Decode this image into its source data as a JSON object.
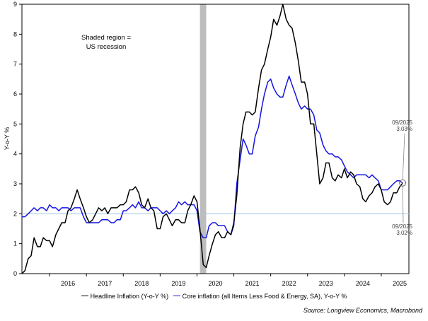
{
  "chart_data": {
    "type": "line",
    "xlim": [
      2015.25,
      2025.75
    ],
    "ylim": [
      0,
      9
    ],
    "ylabel": "Y-o-Y %",
    "y_ticks": [
      0,
      1,
      2,
      3,
      4,
      5,
      6,
      7,
      8,
      9
    ],
    "x_tick_labels": [
      "2016",
      "2017",
      "2018",
      "2019",
      "2020",
      "2021",
      "2022",
      "2023",
      "2024",
      "2025"
    ],
    "reference_line": 2,
    "recession": {
      "start": 2020.08,
      "end": 2020.25,
      "note_line1": "Shaded region =",
      "note_line2": "US recession"
    },
    "series": [
      {
        "name": "Headline Inflation (Y-o-Y %)",
        "color": "#000000",
        "points": [
          [
            2015.25,
            0.0
          ],
          [
            2015.33,
            0.1
          ],
          [
            2015.42,
            0.5
          ],
          [
            2015.5,
            0.6
          ],
          [
            2015.58,
            1.2
          ],
          [
            2015.67,
            0.9
          ],
          [
            2015.75,
            0.9
          ],
          [
            2015.83,
            1.2
          ],
          [
            2015.92,
            1.1
          ],
          [
            2016.0,
            1.1
          ],
          [
            2016.08,
            0.9
          ],
          [
            2016.17,
            1.3
          ],
          [
            2016.25,
            1.5
          ],
          [
            2016.33,
            1.7
          ],
          [
            2016.42,
            1.7
          ],
          [
            2016.5,
            2.1
          ],
          [
            2016.58,
            2.2
          ],
          [
            2016.67,
            2.5
          ],
          [
            2016.75,
            2.8
          ],
          [
            2016.83,
            2.5
          ],
          [
            2016.92,
            2.2
          ],
          [
            2017.0,
            1.9
          ],
          [
            2017.08,
            1.7
          ],
          [
            2017.17,
            1.8
          ],
          [
            2017.25,
            2.0
          ],
          [
            2017.33,
            2.2
          ],
          [
            2017.42,
            2.1
          ],
          [
            2017.5,
            2.2
          ],
          [
            2017.58,
            2.0
          ],
          [
            2017.67,
            2.2
          ],
          [
            2017.75,
            2.2
          ],
          [
            2017.83,
            2.2
          ],
          [
            2017.92,
            2.3
          ],
          [
            2018.0,
            2.3
          ],
          [
            2018.08,
            2.4
          ],
          [
            2018.17,
            2.8
          ],
          [
            2018.25,
            2.8
          ],
          [
            2018.33,
            2.9
          ],
          [
            2018.42,
            2.7
          ],
          [
            2018.5,
            2.3
          ],
          [
            2018.58,
            2.2
          ],
          [
            2018.67,
            2.5
          ],
          [
            2018.75,
            2.2
          ],
          [
            2018.83,
            2.1
          ],
          [
            2018.92,
            1.5
          ],
          [
            2019.0,
            1.5
          ],
          [
            2019.08,
            1.9
          ],
          [
            2019.17,
            2.0
          ],
          [
            2019.25,
            1.8
          ],
          [
            2019.33,
            1.6
          ],
          [
            2019.42,
            1.8
          ],
          [
            2019.5,
            1.8
          ],
          [
            2019.58,
            1.7
          ],
          [
            2019.67,
            1.7
          ],
          [
            2019.75,
            2.1
          ],
          [
            2019.83,
            2.3
          ],
          [
            2019.92,
            2.6
          ],
          [
            2020.0,
            2.4
          ],
          [
            2020.08,
            1.5
          ],
          [
            2020.17,
            0.3
          ],
          [
            2020.25,
            0.2
          ],
          [
            2020.33,
            0.6
          ],
          [
            2020.42,
            1.0
          ],
          [
            2020.5,
            1.3
          ],
          [
            2020.58,
            1.4
          ],
          [
            2020.67,
            1.2
          ],
          [
            2020.75,
            1.2
          ],
          [
            2020.83,
            1.4
          ],
          [
            2020.92,
            1.3
          ],
          [
            2021.0,
            1.7
          ],
          [
            2021.08,
            2.6
          ],
          [
            2021.17,
            4.2
          ],
          [
            2021.25,
            5.0
          ],
          [
            2021.33,
            5.4
          ],
          [
            2021.42,
            5.4
          ],
          [
            2021.5,
            5.3
          ],
          [
            2021.58,
            5.4
          ],
          [
            2021.67,
            6.2
          ],
          [
            2021.75,
            6.8
          ],
          [
            2021.83,
            7.0
          ],
          [
            2021.92,
            7.5
          ],
          [
            2022.0,
            7.9
          ],
          [
            2022.08,
            8.5
          ],
          [
            2022.17,
            8.3
          ],
          [
            2022.25,
            8.6
          ],
          [
            2022.33,
            9.0
          ],
          [
            2022.42,
            8.5
          ],
          [
            2022.5,
            8.3
          ],
          [
            2022.58,
            8.2
          ],
          [
            2022.67,
            7.7
          ],
          [
            2022.75,
            7.1
          ],
          [
            2022.83,
            6.4
          ],
          [
            2022.92,
            6.4
          ],
          [
            2023.0,
            6.0
          ],
          [
            2023.08,
            5.0
          ],
          [
            2023.17,
            5.0
          ],
          [
            2023.25,
            4.0
          ],
          [
            2023.33,
            3.0
          ],
          [
            2023.42,
            3.2
          ],
          [
            2023.5,
            3.7
          ],
          [
            2023.58,
            3.7
          ],
          [
            2023.67,
            3.2
          ],
          [
            2023.75,
            3.1
          ],
          [
            2023.83,
            3.3
          ],
          [
            2023.92,
            3.2
          ],
          [
            2024.0,
            3.5
          ],
          [
            2024.08,
            3.2
          ],
          [
            2024.17,
            3.4
          ],
          [
            2024.25,
            3.3
          ],
          [
            2024.33,
            3.0
          ],
          [
            2024.42,
            2.9
          ],
          [
            2024.5,
            2.5
          ],
          [
            2024.58,
            2.4
          ],
          [
            2024.67,
            2.6
          ],
          [
            2024.75,
            2.7
          ],
          [
            2024.83,
            2.9
          ],
          [
            2024.92,
            3.0
          ],
          [
            2025.0,
            2.8
          ],
          [
            2025.08,
            2.4
          ],
          [
            2025.17,
            2.3
          ],
          [
            2025.25,
            2.4
          ],
          [
            2025.33,
            2.7
          ],
          [
            2025.42,
            2.7
          ],
          [
            2025.5,
            2.9
          ],
          [
            2025.58,
            3.02
          ]
        ]
      },
      {
        "name": "Core inflation (all Items Less Food & Energy, SA), Y-o-Y %",
        "color": "#1414e0",
        "points": [
          [
            2015.25,
            1.9
          ],
          [
            2015.33,
            1.9
          ],
          [
            2015.42,
            2.0
          ],
          [
            2015.5,
            2.1
          ],
          [
            2015.58,
            2.2
          ],
          [
            2015.67,
            2.1
          ],
          [
            2015.75,
            2.2
          ],
          [
            2015.83,
            2.2
          ],
          [
            2015.92,
            2.1
          ],
          [
            2016.0,
            2.3
          ],
          [
            2016.08,
            2.2
          ],
          [
            2016.17,
            2.2
          ],
          [
            2016.25,
            2.1
          ],
          [
            2016.33,
            2.2
          ],
          [
            2016.42,
            2.2
          ],
          [
            2016.5,
            2.2
          ],
          [
            2016.58,
            2.1
          ],
          [
            2016.67,
            2.2
          ],
          [
            2016.75,
            2.2
          ],
          [
            2016.83,
            2.2
          ],
          [
            2016.92,
            1.9
          ],
          [
            2017.0,
            1.7
          ],
          [
            2017.08,
            1.7
          ],
          [
            2017.17,
            1.7
          ],
          [
            2017.25,
            1.7
          ],
          [
            2017.33,
            1.7
          ],
          [
            2017.42,
            1.8
          ],
          [
            2017.5,
            1.8
          ],
          [
            2017.58,
            1.8
          ],
          [
            2017.67,
            1.7
          ],
          [
            2017.75,
            1.7
          ],
          [
            2017.83,
            1.8
          ],
          [
            2017.92,
            1.8
          ],
          [
            2018.0,
            2.1
          ],
          [
            2018.08,
            2.1
          ],
          [
            2018.17,
            2.2
          ],
          [
            2018.25,
            2.3
          ],
          [
            2018.33,
            2.2
          ],
          [
            2018.42,
            2.4
          ],
          [
            2018.5,
            2.2
          ],
          [
            2018.58,
            2.2
          ],
          [
            2018.67,
            2.1
          ],
          [
            2018.75,
            2.2
          ],
          [
            2018.83,
            2.2
          ],
          [
            2018.92,
            2.2
          ],
          [
            2019.0,
            2.1
          ],
          [
            2019.08,
            2.0
          ],
          [
            2019.17,
            2.1
          ],
          [
            2019.25,
            2.0
          ],
          [
            2019.33,
            2.1
          ],
          [
            2019.42,
            2.2
          ],
          [
            2019.5,
            2.4
          ],
          [
            2019.58,
            2.3
          ],
          [
            2019.67,
            2.4
          ],
          [
            2019.75,
            2.3
          ],
          [
            2019.83,
            2.3
          ],
          [
            2019.92,
            2.3
          ],
          [
            2020.0,
            2.1
          ],
          [
            2020.08,
            1.4
          ],
          [
            2020.17,
            1.2
          ],
          [
            2020.25,
            1.2
          ],
          [
            2020.33,
            1.6
          ],
          [
            2020.42,
            1.7
          ],
          [
            2020.5,
            1.7
          ],
          [
            2020.58,
            1.6
          ],
          [
            2020.67,
            1.6
          ],
          [
            2020.75,
            1.6
          ],
          [
            2020.83,
            1.4
          ],
          [
            2020.92,
            1.3
          ],
          [
            2021.0,
            1.6
          ],
          [
            2021.08,
            3.0
          ],
          [
            2021.17,
            3.8
          ],
          [
            2021.25,
            4.5
          ],
          [
            2021.33,
            4.3
          ],
          [
            2021.42,
            4.0
          ],
          [
            2021.5,
            4.0
          ],
          [
            2021.58,
            4.6
          ],
          [
            2021.67,
            4.9
          ],
          [
            2021.75,
            5.5
          ],
          [
            2021.83,
            6.0
          ],
          [
            2021.92,
            6.4
          ],
          [
            2022.0,
            6.5
          ],
          [
            2022.08,
            6.2
          ],
          [
            2022.17,
            6.0
          ],
          [
            2022.25,
            5.9
          ],
          [
            2022.33,
            5.9
          ],
          [
            2022.42,
            6.3
          ],
          [
            2022.5,
            6.6
          ],
          [
            2022.58,
            6.3
          ],
          [
            2022.67,
            6.0
          ],
          [
            2022.75,
            5.7
          ],
          [
            2022.83,
            5.5
          ],
          [
            2022.92,
            5.6
          ],
          [
            2023.0,
            5.5
          ],
          [
            2023.08,
            5.5
          ],
          [
            2023.17,
            5.3
          ],
          [
            2023.25,
            4.8
          ],
          [
            2023.33,
            4.7
          ],
          [
            2023.42,
            4.3
          ],
          [
            2023.5,
            4.1
          ],
          [
            2023.58,
            4.0
          ],
          [
            2023.67,
            4.0
          ],
          [
            2023.75,
            3.9
          ],
          [
            2023.83,
            3.9
          ],
          [
            2023.92,
            3.8
          ],
          [
            2024.0,
            3.6
          ],
          [
            2024.08,
            3.4
          ],
          [
            2024.17,
            3.3
          ],
          [
            2024.25,
            3.2
          ],
          [
            2024.33,
            3.3
          ],
          [
            2024.42,
            3.3
          ],
          [
            2024.5,
            3.3
          ],
          [
            2024.58,
            3.3
          ],
          [
            2024.67,
            3.2
          ],
          [
            2024.75,
            3.3
          ],
          [
            2024.83,
            3.2
          ],
          [
            2024.92,
            3.1
          ],
          [
            2025.0,
            2.8
          ],
          [
            2025.08,
            2.8
          ],
          [
            2025.17,
            2.8
          ],
          [
            2025.25,
            2.9
          ],
          [
            2025.33,
            3.0
          ],
          [
            2025.42,
            3.1
          ],
          [
            2025.5,
            3.1
          ],
          [
            2025.58,
            3.03
          ]
        ]
      }
    ],
    "annotations": [
      {
        "label_date": "09/2025",
        "label_value": "3.03%",
        "series": "core"
      },
      {
        "label_date": "09/2025",
        "label_value": "3.02%",
        "series": "headline"
      }
    ],
    "source": "Source: Longview Economics, Macrobond"
  }
}
